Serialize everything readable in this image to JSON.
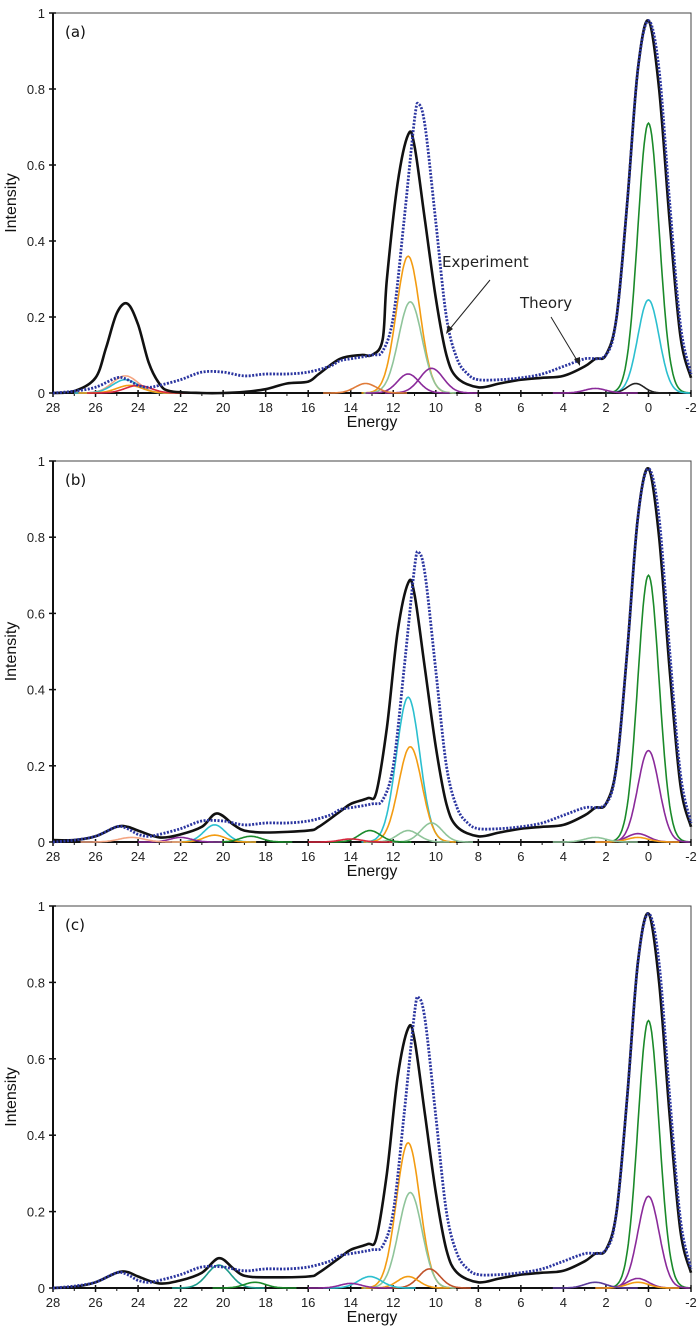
{
  "chart_data": [
    {
      "type": "line",
      "panel_label": "(a)",
      "xlabel": "Energy",
      "ylabel": "Intensity",
      "xlim": [
        28,
        -2
      ],
      "ylim": [
        0,
        1
      ],
      "x_ticks": [
        "28",
        "26",
        "24",
        "22",
        "20",
        "18",
        "16",
        "14",
        "12",
        "10",
        "8",
        "6",
        "4",
        "2",
        "0",
        "-2"
      ],
      "y_ticks": [
        "0",
        "0.2",
        "0.4",
        "0.6",
        "0.8",
        "1"
      ],
      "grid": false,
      "annotations": [
        "Experiment",
        "Theory"
      ],
      "experiment": {
        "color": "#2b35a0",
        "style": "dotted",
        "x": [
          28,
          27,
          26,
          25,
          24.5,
          24,
          23.5,
          23,
          22,
          21,
          20,
          19,
          18,
          17,
          16,
          15,
          14.5,
          14,
          13,
          12.5,
          12,
          11.5,
          11,
          10.8,
          10.5,
          10,
          9.5,
          9,
          8.5,
          8,
          7,
          6,
          5,
          4,
          3,
          2,
          1.5,
          1,
          0.5,
          0,
          -0.5,
          -1,
          -1.5,
          -2
        ],
        "y": [
          0,
          0.005,
          0.015,
          0.04,
          0.035,
          0.02,
          0.015,
          0.02,
          0.035,
          0.055,
          0.055,
          0.045,
          0.05,
          0.05,
          0.055,
          0.07,
          0.085,
          0.09,
          0.1,
          0.11,
          0.2,
          0.45,
          0.72,
          0.76,
          0.7,
          0.45,
          0.2,
          0.09,
          0.05,
          0.035,
          0.035,
          0.04,
          0.05,
          0.07,
          0.09,
          0.1,
          0.2,
          0.5,
          0.85,
          0.98,
          0.85,
          0.5,
          0.18,
          0.05
        ]
      },
      "theory": {
        "color": "#111111",
        "x": [
          28,
          27,
          26,
          25.5,
          25,
          24.5,
          24,
          23.5,
          23,
          22.5,
          21,
          20,
          19,
          18,
          17,
          16,
          15.5,
          14.5,
          13.5,
          13,
          12.5,
          12.3,
          11.8,
          11.3,
          11,
          10.5,
          10,
          9.5,
          9,
          8,
          7,
          6,
          5,
          4,
          3,
          2.5,
          2,
          1.5,
          1,
          0.5,
          0,
          -0.5,
          -1,
          -1.5,
          -2
        ],
        "y": [
          0,
          0.005,
          0.04,
          0.12,
          0.21,
          0.235,
          0.18,
          0.08,
          0.025,
          0.005,
          0,
          0,
          0.003,
          0.01,
          0.025,
          0.03,
          0.05,
          0.09,
          0.1,
          0.1,
          0.14,
          0.3,
          0.55,
          0.68,
          0.65,
          0.45,
          0.25,
          0.1,
          0.04,
          0.015,
          0.025,
          0.035,
          0.04,
          0.045,
          0.07,
          0.09,
          0.1,
          0.2,
          0.5,
          0.85,
          0.98,
          0.8,
          0.45,
          0.15,
          0.04
        ]
      },
      "components": [
        {
          "color": "#1a8a2a",
          "center": 0,
          "height": 0.71,
          "sigma": 0.5
        },
        {
          "color": "#2bbfcf",
          "center": 0,
          "height": 0.245,
          "sigma": 0.5
        },
        {
          "color": "#222222",
          "center": 0.6,
          "height": 0.025,
          "sigma": 0.4
        },
        {
          "color": "#8a2a9a",
          "center": 2.5,
          "height": 0.012,
          "sigma": 0.5
        },
        {
          "color": "#f39c12",
          "center": 11.3,
          "height": 0.36,
          "sigma": 0.55
        },
        {
          "color": "#8fc49a",
          "center": 11.2,
          "height": 0.24,
          "sigma": 0.55
        },
        {
          "color": "#8a2a9a",
          "center": 11.3,
          "height": 0.05,
          "sigma": 0.5
        },
        {
          "color": "#8a2a9a",
          "center": 10.2,
          "height": 0.065,
          "sigma": 0.55
        },
        {
          "color": "#e07b39",
          "center": 13.3,
          "height": 0.025,
          "sigma": 0.5
        },
        {
          "color": "#f4a582",
          "center": 24.6,
          "height": 0.045,
          "sigma": 0.6
        },
        {
          "color": "#2bbfcf",
          "center": 24.6,
          "height": 0.035,
          "sigma": 0.6
        },
        {
          "color": "#f39c12",
          "center": 24.4,
          "height": 0.02,
          "sigma": 0.6
        },
        {
          "color": "#d7263d",
          "center": 24.0,
          "height": 0.02,
          "sigma": 0.6
        }
      ]
    },
    {
      "type": "line",
      "panel_label": "(b)",
      "xlabel": "Energy",
      "ylabel": "Intensity",
      "xlim": [
        28,
        -2
      ],
      "ylim": [
        0,
        1
      ],
      "x_ticks": [
        "28",
        "26",
        "24",
        "22",
        "20",
        "18",
        "16",
        "14",
        "12",
        "10",
        "8",
        "6",
        "4",
        "2",
        "0",
        "-2"
      ],
      "y_ticks": [
        "0",
        "0.2",
        "0.4",
        "0.6",
        "0.8",
        "1"
      ],
      "grid": false,
      "experiment": {
        "color": "#2b35a0",
        "style": "dotted",
        "x": [
          28,
          27,
          26,
          25,
          24.5,
          24,
          23.5,
          23,
          22,
          21,
          20,
          19,
          18,
          17,
          16,
          15,
          14.5,
          14,
          13,
          12.5,
          12,
          11.5,
          11,
          10.8,
          10.5,
          10,
          9.5,
          9,
          8.5,
          8,
          7,
          6,
          5,
          4,
          3,
          2,
          1.5,
          1,
          0.5,
          0,
          -0.5,
          -1,
          -1.5,
          -2
        ],
        "y": [
          0,
          0.005,
          0.015,
          0.04,
          0.035,
          0.02,
          0.015,
          0.02,
          0.035,
          0.055,
          0.055,
          0.045,
          0.05,
          0.05,
          0.055,
          0.07,
          0.085,
          0.09,
          0.1,
          0.11,
          0.2,
          0.45,
          0.72,
          0.76,
          0.7,
          0.45,
          0.2,
          0.09,
          0.05,
          0.035,
          0.035,
          0.04,
          0.05,
          0.07,
          0.09,
          0.1,
          0.2,
          0.5,
          0.85,
          0.98,
          0.85,
          0.5,
          0.18,
          0.05
        ]
      },
      "theory": {
        "color": "#111111",
        "x": [
          28,
          27,
          26,
          25,
          24.5,
          24,
          23,
          22,
          21,
          20.3,
          19.5,
          19,
          18,
          16,
          15.5,
          14.5,
          14,
          13.2,
          12.8,
          12.3,
          11.8,
          11.3,
          11,
          10.5,
          10,
          9.5,
          9,
          8,
          7,
          6,
          5,
          4,
          3,
          2.5,
          2,
          1.5,
          1,
          0.5,
          0,
          -0.5,
          -1,
          -1.5,
          -2
        ],
        "y": [
          0.005,
          0.005,
          0.015,
          0.04,
          0.04,
          0.03,
          0.012,
          0.02,
          0.04,
          0.075,
          0.045,
          0.03,
          0.025,
          0.03,
          0.04,
          0.08,
          0.1,
          0.115,
          0.13,
          0.3,
          0.55,
          0.68,
          0.65,
          0.45,
          0.25,
          0.1,
          0.04,
          0.015,
          0.025,
          0.035,
          0.04,
          0.045,
          0.07,
          0.09,
          0.1,
          0.2,
          0.5,
          0.85,
          0.98,
          0.8,
          0.45,
          0.15,
          0.04
        ]
      },
      "components": [
        {
          "color": "#1a8a2a",
          "center": 0,
          "height": 0.7,
          "sigma": 0.5
        },
        {
          "color": "#8a2a9a",
          "center": 0,
          "height": 0.24,
          "sigma": 0.5
        },
        {
          "color": "#8a2a9a",
          "center": 0.5,
          "height": 0.022,
          "sigma": 0.5
        },
        {
          "color": "#f39c12",
          "center": 0.5,
          "height": 0.012,
          "sigma": 0.5
        },
        {
          "color": "#8fc49a",
          "center": 2.5,
          "height": 0.012,
          "sigma": 0.5
        },
        {
          "color": "#2bbfcf",
          "center": 11.3,
          "height": 0.38,
          "sigma": 0.55
        },
        {
          "color": "#f39c12",
          "center": 11.2,
          "height": 0.25,
          "sigma": 0.55
        },
        {
          "color": "#8fc49a",
          "center": 10.2,
          "height": 0.05,
          "sigma": 0.5
        },
        {
          "color": "#8fc49a",
          "center": 11.3,
          "height": 0.03,
          "sigma": 0.5
        },
        {
          "color": "#1a8a2a",
          "center": 13.1,
          "height": 0.03,
          "sigma": 0.5
        },
        {
          "color": "#d7263d",
          "center": 14.0,
          "height": 0.008,
          "sigma": 0.5
        },
        {
          "color": "#2bbfcf",
          "center": 20.4,
          "height": 0.045,
          "sigma": 0.5
        },
        {
          "color": "#f39c12",
          "center": 20.4,
          "height": 0.018,
          "sigma": 0.5
        },
        {
          "color": "#1a8a2a",
          "center": 18.7,
          "height": 0.015,
          "sigma": 0.5
        },
        {
          "color": "#8a2a9a",
          "center": 22.0,
          "height": 0.012,
          "sigma": 0.5
        },
        {
          "color": "#f4a582",
          "center": 24.3,
          "height": 0.012,
          "sigma": 0.6
        }
      ]
    },
    {
      "type": "line",
      "panel_label": "(c)",
      "xlabel": "Energy",
      "ylabel": "Intensity",
      "xlim": [
        28,
        -2
      ],
      "ylim": [
        0,
        1
      ],
      "x_ticks": [
        "28",
        "26",
        "24",
        "22",
        "20",
        "18",
        "16",
        "14",
        "12",
        "10",
        "8",
        "6",
        "4",
        "2",
        "0",
        "-2"
      ],
      "y_ticks": [
        "0",
        "0.2",
        "0.4",
        "0.6",
        "0.8",
        "1"
      ],
      "grid": false,
      "experiment": {
        "color": "#2b35a0",
        "style": "dotted",
        "x": [
          28,
          27,
          26,
          25,
          24.5,
          24,
          23.5,
          23,
          22,
          21,
          20,
          19,
          18,
          17,
          16,
          15,
          14.5,
          14,
          13,
          12.5,
          12,
          11.5,
          11,
          10.8,
          10.5,
          10,
          9.5,
          9,
          8.5,
          8,
          7,
          6,
          5,
          4,
          3,
          2,
          1.5,
          1,
          0.5,
          0,
          -0.5,
          -1,
          -1.5,
          -2
        ],
        "y": [
          0,
          0.005,
          0.015,
          0.04,
          0.035,
          0.02,
          0.015,
          0.02,
          0.035,
          0.055,
          0.055,
          0.045,
          0.05,
          0.05,
          0.055,
          0.07,
          0.085,
          0.09,
          0.1,
          0.11,
          0.2,
          0.45,
          0.72,
          0.76,
          0.7,
          0.45,
          0.2,
          0.09,
          0.05,
          0.035,
          0.035,
          0.04,
          0.05,
          0.07,
          0.09,
          0.1,
          0.2,
          0.5,
          0.85,
          0.98,
          0.85,
          0.5,
          0.18,
          0.05
        ]
      },
      "theory": {
        "color": "#111111",
        "x": [
          28,
          27,
          26,
          25,
          24.5,
          24,
          23,
          22,
          21,
          20.2,
          19.5,
          19,
          18,
          16,
          15.5,
          14.5,
          14,
          13.2,
          12.8,
          12.3,
          11.8,
          11.3,
          11,
          10.5,
          10,
          9.5,
          9,
          8,
          7,
          6,
          5,
          4,
          3,
          2.5,
          2,
          1.5,
          1,
          0.5,
          0,
          -0.5,
          -1,
          -1.5,
          -2
        ],
        "y": [
          0,
          0.003,
          0.015,
          0.04,
          0.042,
          0.03,
          0.012,
          0.02,
          0.04,
          0.078,
          0.05,
          0.032,
          0.028,
          0.03,
          0.04,
          0.08,
          0.1,
          0.115,
          0.13,
          0.3,
          0.55,
          0.68,
          0.65,
          0.45,
          0.25,
          0.1,
          0.04,
          0.015,
          0.025,
          0.035,
          0.04,
          0.045,
          0.07,
          0.09,
          0.1,
          0.2,
          0.5,
          0.85,
          0.98,
          0.8,
          0.45,
          0.15,
          0.04
        ]
      },
      "components": [
        {
          "color": "#1a8a2a",
          "center": 0,
          "height": 0.7,
          "sigma": 0.5
        },
        {
          "color": "#8a2a9a",
          "center": 0,
          "height": 0.24,
          "sigma": 0.5
        },
        {
          "color": "#8a2a9a",
          "center": 0.5,
          "height": 0.025,
          "sigma": 0.5
        },
        {
          "color": "#f39c12",
          "center": 0.5,
          "height": 0.015,
          "sigma": 0.5
        },
        {
          "color": "#5a3a9a",
          "center": 2.5,
          "height": 0.015,
          "sigma": 0.5
        },
        {
          "color": "#f39c12",
          "center": 11.3,
          "height": 0.38,
          "sigma": 0.55
        },
        {
          "color": "#8fc49a",
          "center": 11.2,
          "height": 0.25,
          "sigma": 0.55
        },
        {
          "color": "#c0522a",
          "center": 10.3,
          "height": 0.05,
          "sigma": 0.5
        },
        {
          "color": "#f39c12",
          "center": 11.3,
          "height": 0.03,
          "sigma": 0.5
        },
        {
          "color": "#2bbfcf",
          "center": 13.1,
          "height": 0.03,
          "sigma": 0.55
        },
        {
          "color": "#8a2a9a",
          "center": 14.0,
          "height": 0.012,
          "sigma": 0.5
        },
        {
          "color": "#1a9a8a",
          "center": 20.2,
          "height": 0.06,
          "sigma": 0.55
        },
        {
          "color": "#1a8a2a",
          "center": 18.5,
          "height": 0.015,
          "sigma": 0.5
        }
      ]
    }
  ]
}
